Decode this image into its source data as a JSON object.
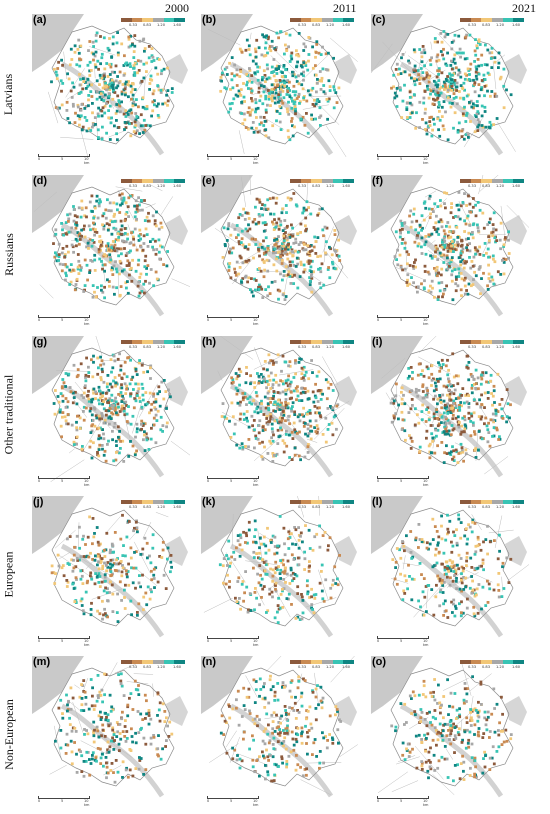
{
  "years": [
    "2000",
    "2011",
    "2021"
  ],
  "rows": [
    "Latvians",
    "Russians",
    "Other traditional",
    "European",
    "Non-European"
  ],
  "panel_labels": [
    "(a)",
    "(b)",
    "(c)",
    "(d)",
    "(e)",
    "(f)",
    "(g)",
    "(h)",
    "(i)",
    "(j)",
    "(k)",
    "(l)",
    "(m)",
    "(n)",
    "(o)"
  ],
  "legend": {
    "ticks": [
      "0.33",
      "0.83",
      "1.20",
      "1.60"
    ],
    "colors": [
      "#8c5a3c",
      "#c98a52",
      "#f2c777",
      "#a7a7a7",
      "#38c4b4",
      "#0f8582"
    ]
  },
  "scale": {
    "left": "0",
    "mid": "5",
    "right": "10 km"
  }
}
